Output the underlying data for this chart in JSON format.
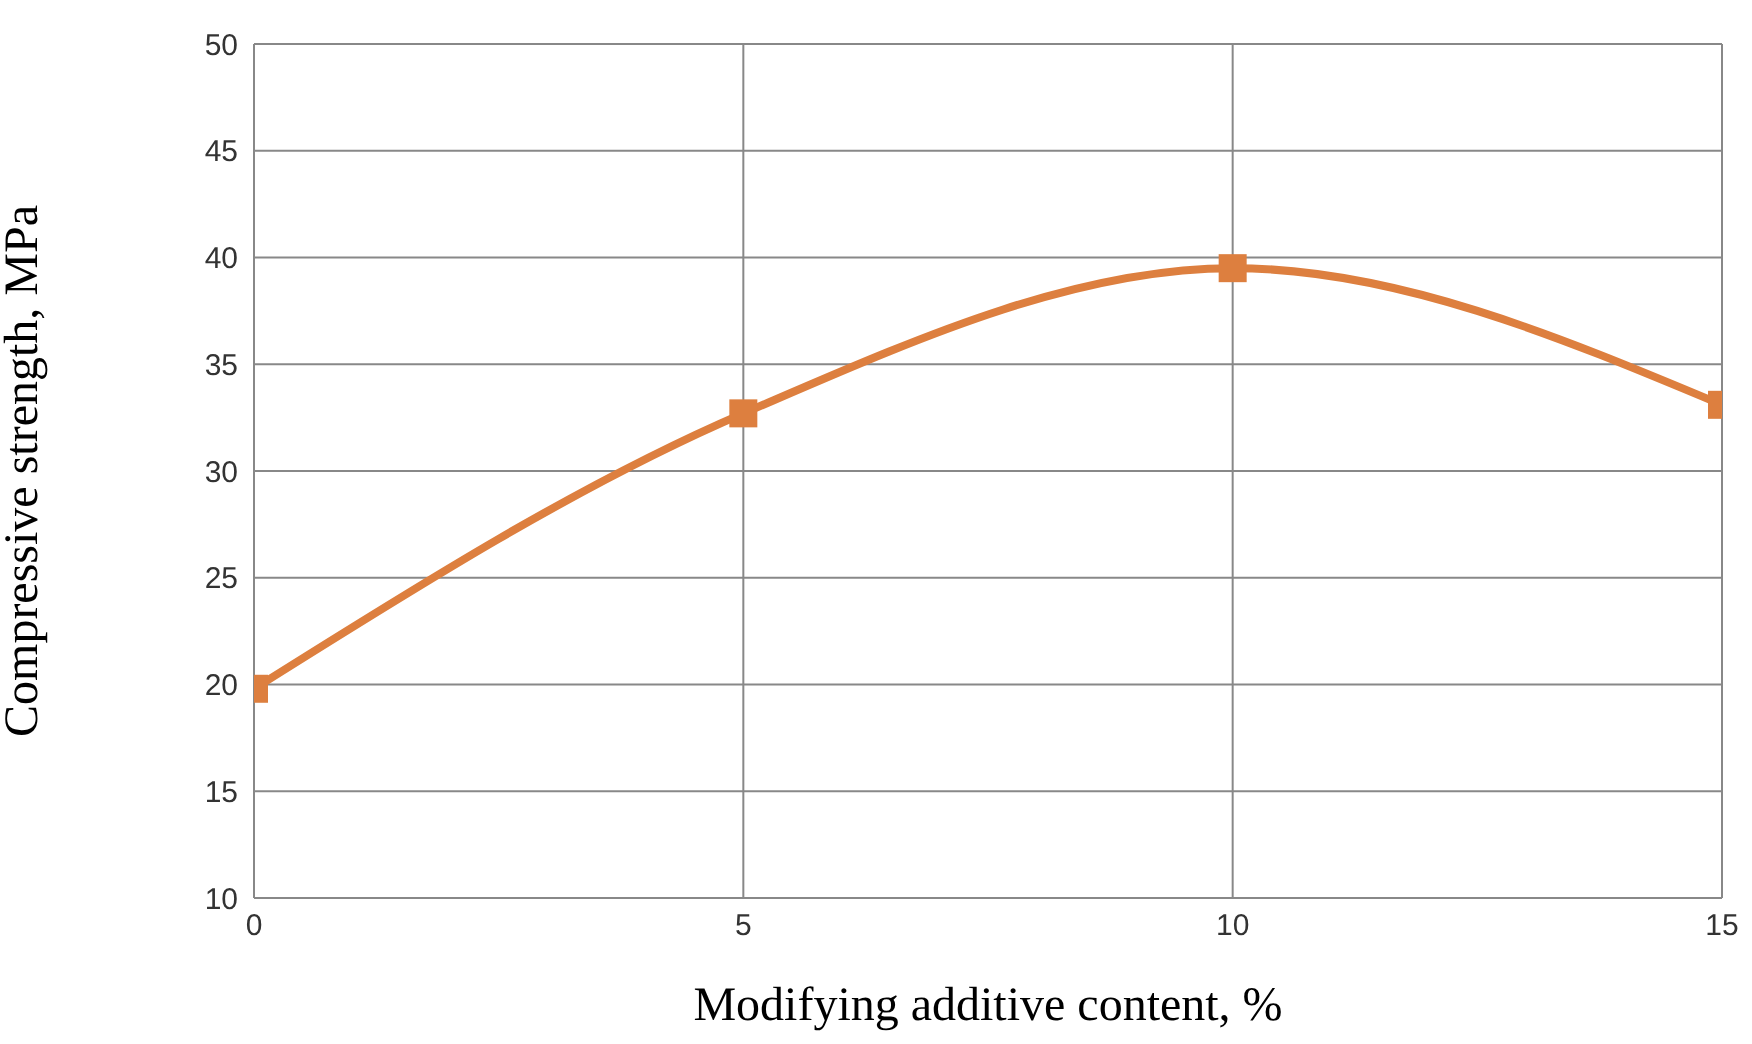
{
  "chart_data": {
    "type": "line",
    "xlabel": "Modifying additive content, %",
    "ylabel": "Compressive strength, MPa",
    "x": [
      0,
      5,
      10,
      15
    ],
    "series": [
      {
        "color": "#dd7f3f",
        "values": [
          19.8,
          32.7,
          39.5,
          33.1
        ]
      }
    ],
    "xlim": [
      0,
      15
    ],
    "xticks": [
      0,
      5,
      10,
      15
    ],
    "ylim": [
      10,
      50
    ],
    "yticks": [
      10,
      15,
      20,
      25,
      30,
      35,
      40,
      45,
      50
    ],
    "grid": true,
    "marker": "square",
    "line_style": "solid"
  }
}
